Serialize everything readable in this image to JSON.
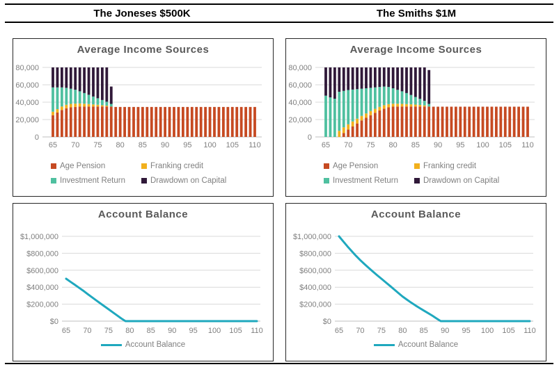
{
  "header": {
    "left_title": "The Joneses $500K",
    "right_title": "The Smiths $1M"
  },
  "colors": {
    "grid": "#D9D9D9",
    "axis_line": "#BFBFBF",
    "axis_text": "#7F7F7F",
    "title_text": "#595959",
    "legend_text": "#7F7F7F",
    "panel_border": "#262626",
    "age_pension": "#C64A22",
    "franking_credit": "#F2B01D",
    "investment_return": "#4FC0A0",
    "drawdown_on_capital": "#301939",
    "account_balance_line": "#1FA8BE"
  },
  "chart_data": [
    {
      "id": "joneses-income",
      "type": "bar",
      "stacked": true,
      "title": "Average Income Sources",
      "x_start": 65,
      "x_end": 110,
      "x_step": 1,
      "xticks": [
        65,
        70,
        75,
        80,
        85,
        90,
        95,
        100,
        105,
        110
      ],
      "ymax": 80000,
      "ytick_labels": [
        "0",
        "20,000",
        "40,000",
        "60,000",
        "80,000"
      ],
      "series": [
        {
          "name": "Age Pension",
          "color": "#C64A22",
          "values": [
            25000,
            28000,
            31000,
            33000,
            34000,
            34500,
            35000,
            35000,
            35000,
            35000,
            35000,
            35000,
            35000,
            35000,
            34500,
            34500,
            34500,
            34500,
            34500,
            34500,
            34500,
            34500,
            34500,
            34500,
            34500,
            34500,
            34500,
            34500,
            34500,
            34500,
            34500,
            34500,
            34500,
            34500,
            34500,
            34500,
            34500,
            34500,
            34500,
            34500,
            34500,
            34500,
            34500,
            34500,
            34500,
            34500
          ]
        },
        {
          "name": "Franking credit",
          "color": "#F2B01D",
          "values": [
            4000,
            4000,
            4000,
            4000,
            4000,
            3800,
            3500,
            3200,
            2800,
            2400,
            2000,
            1500,
            1000,
            0,
            0,
            0,
            0,
            0,
            0,
            0,
            0,
            0,
            0,
            0,
            0,
            0,
            0,
            0,
            0,
            0,
            0,
            0,
            0,
            0,
            0,
            0,
            0,
            0,
            0,
            0,
            0,
            0,
            0,
            0,
            0,
            0
          ]
        },
        {
          "name": "Investment Return",
          "color": "#4FC0A0",
          "values": [
            28000,
            25000,
            22000,
            19500,
            17500,
            16000,
            14000,
            12300,
            10700,
            9100,
            7500,
            6000,
            4500,
            3000,
            0,
            0,
            0,
            0,
            0,
            0,
            0,
            0,
            0,
            0,
            0,
            0,
            0,
            0,
            0,
            0,
            0,
            0,
            0,
            0,
            0,
            0,
            0,
            0,
            0,
            0,
            0,
            0,
            0,
            0,
            0,
            0
          ]
        },
        {
          "name": "Drawdown on Capital",
          "color": "#301939",
          "values": [
            23000,
            23000,
            23000,
            23500,
            24500,
            25700,
            27500,
            29500,
            31500,
            33500,
            35500,
            37500,
            39500,
            20000,
            0,
            0,
            0,
            0,
            0,
            0,
            0,
            0,
            0,
            0,
            0,
            0,
            0,
            0,
            0,
            0,
            0,
            0,
            0,
            0,
            0,
            0,
            0,
            0,
            0,
            0,
            0,
            0,
            0,
            0,
            0,
            0
          ]
        }
      ]
    },
    {
      "id": "smiths-income",
      "type": "bar",
      "stacked": true,
      "title": "Average Income Sources",
      "x_start": 65,
      "x_end": 110,
      "x_step": 1,
      "xticks": [
        65,
        70,
        75,
        80,
        85,
        90,
        95,
        100,
        105,
        110
      ],
      "ymax": 80000,
      "ytick_labels": [
        "0",
        "20,000",
        "40,000",
        "60,000",
        "80,000"
      ],
      "series": [
        {
          "name": "Age Pension",
          "color": "#C64A22",
          "values": [
            0,
            0,
            0,
            0,
            4500,
            8500,
            12000,
            15500,
            19000,
            22000,
            25000,
            27800,
            30400,
            32500,
            34000,
            34800,
            35000,
            35000,
            35000,
            35000,
            35000,
            35000,
            35000,
            35000,
            34800,
            34800,
            34800,
            34800,
            34800,
            34800,
            34800,
            34800,
            34800,
            34800,
            34800,
            34800,
            34800,
            34800,
            34800,
            34800,
            34800,
            34800,
            34800,
            34800,
            34800,
            34800
          ]
        },
        {
          "name": "Franking credit",
          "color": "#F2B01D",
          "values": [
            0,
            0,
            0,
            7000,
            6500,
            6000,
            5800,
            5500,
            5200,
            5000,
            4800,
            4500,
            4200,
            4000,
            3700,
            3400,
            3200,
            3000,
            2800,
            2500,
            2200,
            1800,
            1300,
            0,
            0,
            0,
            0,
            0,
            0,
            0,
            0,
            0,
            0,
            0,
            0,
            0,
            0,
            0,
            0,
            0,
            0,
            0,
            0,
            0,
            0,
            0
          ]
        },
        {
          "name": "Investment Return",
          "color": "#4FC0A0",
          "values": [
            47500,
            45500,
            44000,
            45000,
            42000,
            39500,
            36700,
            34000,
            31300,
            29000,
            26700,
            24700,
            22900,
            21500,
            19800,
            17800,
            16000,
            14500,
            12700,
            10800,
            8800,
            7000,
            5200,
            3000,
            0,
            0,
            0,
            0,
            0,
            0,
            0,
            0,
            0,
            0,
            0,
            0,
            0,
            0,
            0,
            0,
            0,
            0,
            0,
            0,
            0,
            0
          ]
        },
        {
          "name": "Drawdown on Capital",
          "color": "#301939",
          "values": [
            32500,
            34500,
            36000,
            28000,
            27000,
            26000,
            25500,
            25000,
            24500,
            24000,
            23500,
            23000,
            22500,
            22000,
            22500,
            24000,
            25800,
            27500,
            29500,
            31700,
            34000,
            36200,
            38500,
            39000,
            0,
            0,
            0,
            0,
            0,
            0,
            0,
            0,
            0,
            0,
            0,
            0,
            0,
            0,
            0,
            0,
            0,
            0,
            0,
            0,
            0,
            0
          ]
        }
      ]
    },
    {
      "id": "joneses-balance",
      "type": "line",
      "title": "Account Balance",
      "x_start": 65,
      "x_end": 110,
      "x_step": 1,
      "xticks": [
        65,
        70,
        75,
        80,
        85,
        90,
        95,
        100,
        105,
        110
      ],
      "ymax": 1000000,
      "ytick_labels": [
        "$0",
        "$200,000",
        "$400,000",
        "$600,000",
        "$800,000",
        "$1,000,000"
      ],
      "series": [
        {
          "name": "Account Balance",
          "color": "#1FA8BE",
          "values": [
            500000,
            465000,
            430000,
            395000,
            360000,
            322000,
            285000,
            248000,
            212000,
            176000,
            140000,
            104000,
            68000,
            32000,
            0,
            0,
            0,
            0,
            0,
            0,
            0,
            0,
            0,
            0,
            0,
            0,
            0,
            0,
            0,
            0,
            0,
            0,
            0,
            0,
            0,
            0,
            0,
            0,
            0,
            0,
            0,
            0,
            0,
            0,
            0,
            0
          ]
        }
      ]
    },
    {
      "id": "smiths-balance",
      "type": "line",
      "title": "Account Balance",
      "x_start": 65,
      "x_end": 110,
      "x_step": 1,
      "xticks": [
        65,
        70,
        75,
        80,
        85,
        90,
        95,
        100,
        105,
        110
      ],
      "ymax": 1000000,
      "ytick_labels": [
        "$0",
        "$200,000",
        "$400,000",
        "$600,000",
        "$800,000",
        "$1,000,000"
      ],
      "series": [
        {
          "name": "Account Balance",
          "color": "#1FA8BE",
          "values": [
            1000000,
            940000,
            880000,
            825000,
            770000,
            720000,
            673000,
            628000,
            584000,
            541000,
            500000,
            458000,
            416000,
            374000,
            332000,
            290000,
            254000,
            219000,
            186000,
            155000,
            125000,
            95000,
            65000,
            32000,
            0,
            0,
            0,
            0,
            0,
            0,
            0,
            0,
            0,
            0,
            0,
            0,
            0,
            0,
            0,
            0,
            0,
            0,
            0,
            0,
            0,
            0
          ]
        }
      ]
    }
  ]
}
